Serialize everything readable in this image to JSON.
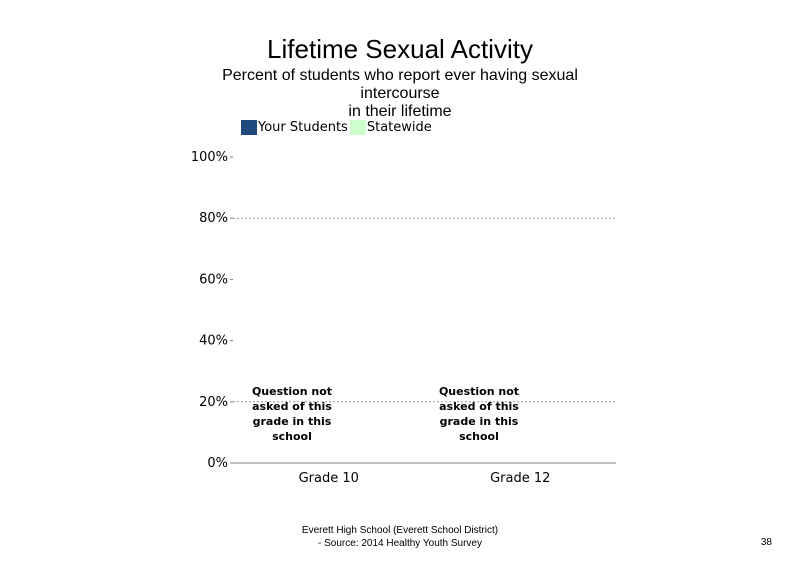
{
  "chart_data": {
    "type": "bar",
    "title": "Lifetime Sexual Activity",
    "subtitle": "Percent of students  who report ever having sexual intercourse\nin their lifetime",
    "categories": [
      "Grade 10",
      "Grade 12"
    ],
    "series": [
      {
        "name": "Your Students",
        "color": "#1f497d",
        "values": [
          null,
          null
        ]
      },
      {
        "name": "Statewide",
        "color": "#ccffcc",
        "values": [
          null,
          null
        ]
      }
    ],
    "ylim": [
      0,
      100
    ],
    "yticks": [
      "0%",
      "20%",
      "40%",
      "60%",
      "80%",
      "100%"
    ],
    "grid": true,
    "legend": "top-left",
    "annotations": [
      "Question not asked of this grade in this school",
      "Question not asked of this grade in this school"
    ]
  },
  "footer": {
    "line1": "Everett High  School (Everett School District)",
    "line2": "- Source: 2014 Healthy  Youth Survey"
  },
  "page_number": "38"
}
